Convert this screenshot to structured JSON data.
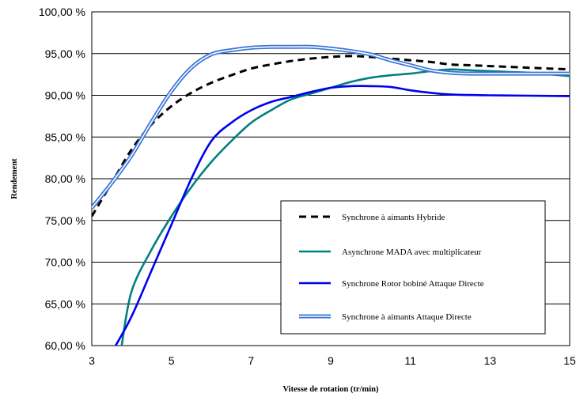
{
  "chart_data": {
    "type": "line",
    "xlabel": "Vitesse de rotation (tr/min)",
    "ylabel": "Rendement",
    "xlim": [
      3,
      15
    ],
    "ylim": [
      60,
      100
    ],
    "x_ticks": [
      3,
      5,
      7,
      9,
      11,
      13,
      15
    ],
    "x_tick_labels": [
      "3",
      "5",
      "7",
      "9",
      "11",
      "13",
      "15"
    ],
    "y_ticks": [
      60,
      65,
      70,
      75,
      80,
      85,
      90,
      95,
      100
    ],
    "y_tick_labels": [
      "60,00 %",
      "65,00 %",
      "70,00 %",
      "75,00 %",
      "80,00 %",
      "85,00 %",
      "90,00 %",
      "95,00 %",
      "100,00 %"
    ],
    "grid": "horizontal",
    "legend_position": "bottom-right",
    "series": [
      {
        "name": "Synchrone à aimants Hybride",
        "color": "#000000",
        "style": "dashed",
        "x": [
          3.0,
          3.5,
          4.0,
          4.5,
          5.0,
          5.5,
          6.0,
          6.5,
          7.0,
          7.5,
          8.0,
          8.5,
          9.0,
          9.5,
          10.0,
          10.5,
          11.0,
          11.5,
          12.0,
          12.5,
          13.0,
          13.5,
          14.0,
          14.5,
          15.0
        ],
        "y": [
          75.5,
          79.5,
          83.5,
          86.5,
          88.7,
          90.3,
          91.5,
          92.4,
          93.2,
          93.7,
          94.1,
          94.4,
          94.6,
          94.7,
          94.6,
          94.4,
          94.2,
          94.0,
          93.7,
          93.6,
          93.5,
          93.4,
          93.3,
          93.2,
          93.1
        ]
      },
      {
        "name": "Asynchrone MADA avec multiplicateur",
        "color": "#008080",
        "style": "solid",
        "x": [
          3.75,
          4.0,
          4.5,
          5.0,
          5.5,
          6.0,
          6.5,
          7.0,
          7.5,
          8.0,
          8.5,
          9.0,
          9.5,
          10.0,
          10.5,
          11.0,
          11.5,
          12.0,
          12.5,
          13.0,
          13.5,
          14.0,
          14.5,
          15.0
        ],
        "y": [
          60.0,
          66.5,
          71.5,
          75.5,
          79.0,
          82.0,
          84.5,
          86.7,
          88.2,
          89.5,
          90.2,
          90.9,
          91.6,
          92.1,
          92.4,
          92.6,
          92.9,
          93.1,
          93.0,
          92.9,
          92.8,
          92.7,
          92.5,
          92.3
        ]
      },
      {
        "name": "Synchrone Rotor bobiné Attaque Directe",
        "color": "#0000ee",
        "style": "solid",
        "x": [
          3.6,
          4.0,
          4.5,
          5.0,
          5.5,
          6.0,
          6.5,
          7.0,
          7.5,
          8.0,
          8.5,
          9.0,
          9.5,
          10.0,
          10.5,
          11.0,
          11.5,
          12.0,
          13.0,
          14.0,
          15.0
        ],
        "y": [
          60.0,
          63.5,
          69.0,
          74.5,
          80.0,
          84.5,
          86.7,
          88.2,
          89.2,
          89.8,
          90.4,
          90.9,
          91.1,
          91.1,
          91.0,
          90.6,
          90.3,
          90.1,
          90.0,
          89.95,
          89.9
        ]
      },
      {
        "name": "Synchrone à aimants Attaque Directe",
        "color": "#3a73d6",
        "style": "double",
        "x": [
          3.0,
          3.5,
          4.0,
          4.5,
          5.0,
          5.5,
          6.0,
          6.5,
          7.0,
          7.5,
          8.0,
          8.5,
          9.0,
          9.5,
          10.0,
          10.5,
          11.0,
          11.5,
          12.0,
          12.5,
          13.0,
          13.5,
          14.0,
          14.5,
          15.0
        ],
        "y": [
          76.5,
          79.5,
          82.8,
          86.8,
          90.5,
          93.3,
          94.9,
          95.4,
          95.7,
          95.8,
          95.8,
          95.8,
          95.6,
          95.3,
          94.9,
          94.2,
          93.6,
          93.0,
          92.7,
          92.6,
          92.6,
          92.6,
          92.6,
          92.6,
          92.6
        ]
      }
    ]
  }
}
